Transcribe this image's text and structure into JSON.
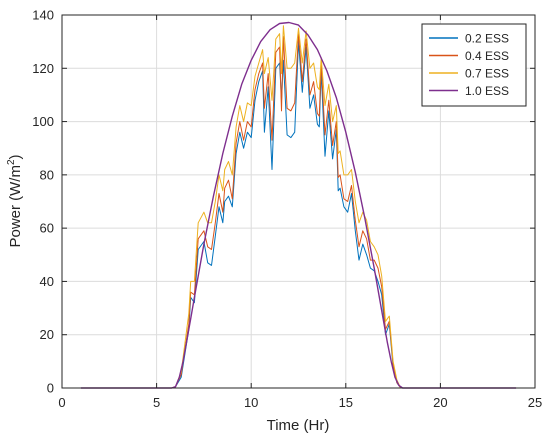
{
  "chart_data": {
    "type": "line",
    "title": "",
    "xlabel": "Time (Hr)",
    "ylabel_main": "Power (W/m",
    "ylabel_sup": "2",
    "ylabel_close": ")",
    "xlim": [
      0,
      25
    ],
    "ylim": [
      0,
      140
    ],
    "xticks": [
      0,
      5,
      10,
      15,
      20,
      25
    ],
    "yticks": [
      0,
      20,
      40,
      60,
      80,
      100,
      120,
      140
    ],
    "grid": true,
    "legend_position": "top-right",
    "series": [
      {
        "name": "0.2 ESS",
        "color": "#0072bd",
        "x": [
          1,
          5.5,
          5.8,
          6,
          6.3,
          6.7,
          6.8,
          7,
          7.2,
          7.5,
          7.7,
          7.9,
          8.1,
          8.3,
          8.5,
          8.6,
          8.8,
          9,
          9.2,
          9.4,
          9.6,
          9.8,
          10,
          10.2,
          10.4,
          10.6,
          10.7,
          10.9,
          11.1,
          11.3,
          11.5,
          11.6,
          11.7,
          11.9,
          12.1,
          12.3,
          12.5,
          12.7,
          12.9,
          13.1,
          13.3,
          13.5,
          13.6,
          13.7,
          13.9,
          14.1,
          14.3,
          14.5,
          14.6,
          14.7,
          14.9,
          15.1,
          15.3,
          15.5,
          15.7,
          15.9,
          16.1,
          16.3,
          16.5,
          16.7,
          16.9,
          17.1,
          17.3,
          17.5,
          17.7,
          17.9,
          18.1,
          18.3,
          24
        ],
        "y": [
          0,
          0,
          0,
          0.5,
          4,
          22,
          34,
          32,
          52,
          55,
          47,
          46,
          57,
          68,
          62,
          70,
          72,
          68,
          88,
          96,
          90,
          96,
          94,
          108,
          115,
          119,
          96,
          113,
          82,
          120,
          122,
          108,
          123,
          95,
          94,
          96,
          130,
          111,
          128,
          105,
          110,
          99,
          98,
          119,
          87,
          104,
          86,
          97,
          74,
          75,
          68,
          66,
          73,
          59,
          48,
          54,
          50,
          45,
          44,
          40,
          35,
          20,
          24,
          8,
          2,
          0,
          0,
          0,
          0
        ]
      },
      {
        "name": "0.4 ESS",
        "color": "#d95319",
        "x": [
          1,
          5.5,
          5.8,
          6,
          6.3,
          6.7,
          6.8,
          7,
          7.2,
          7.5,
          7.7,
          7.9,
          8.1,
          8.3,
          8.5,
          8.6,
          8.8,
          9,
          9.2,
          9.4,
          9.6,
          9.8,
          10,
          10.2,
          10.4,
          10.6,
          10.7,
          10.9,
          11.1,
          11.3,
          11.5,
          11.6,
          11.7,
          11.9,
          12.1,
          12.3,
          12.5,
          12.7,
          12.9,
          13.1,
          13.3,
          13.5,
          13.6,
          13.7,
          13.9,
          14.1,
          14.3,
          14.5,
          14.6,
          14.7,
          14.9,
          15.1,
          15.3,
          15.5,
          15.7,
          15.9,
          16.1,
          16.3,
          16.5,
          16.7,
          16.9,
          17.1,
          17.3,
          17.5,
          17.7,
          17.9,
          18.1,
          18.3,
          24
        ],
        "y": [
          0,
          0,
          0,
          0.5,
          5,
          24,
          36,
          35,
          56,
          59,
          53,
          52,
          62,
          73,
          66,
          75,
          78,
          71,
          92,
          100,
          93,
          100,
          98,
          112,
          118,
          122,
          105,
          118,
          93,
          126,
          128,
          104,
          132,
          105,
          104,
          107,
          133,
          115,
          131,
          110,
          115,
          103,
          102,
          122,
          95,
          108,
          91,
          100,
          79,
          80,
          71,
          70,
          76,
          63,
          53,
          59,
          56,
          48,
          48,
          45,
          38,
          22,
          25,
          9,
          2,
          0,
          0,
          0,
          0
        ]
      },
      {
        "name": "0.7 ESS",
        "color": "#edb120",
        "x": [
          1,
          5.5,
          5.8,
          6,
          6.3,
          6.7,
          6.8,
          7,
          7.2,
          7.5,
          7.7,
          7.9,
          8.1,
          8.3,
          8.5,
          8.6,
          8.8,
          9,
          9.2,
          9.4,
          9.6,
          9.8,
          10,
          10.2,
          10.4,
          10.6,
          10.7,
          10.9,
          11.1,
          11.3,
          11.5,
          11.6,
          11.7,
          11.9,
          12.1,
          12.3,
          12.5,
          12.7,
          12.9,
          13.1,
          13.3,
          13.5,
          13.6,
          13.7,
          13.9,
          14.1,
          14.3,
          14.5,
          14.6,
          14.7,
          14.9,
          15.1,
          15.3,
          15.5,
          15.7,
          15.9,
          16.1,
          16.3,
          16.5,
          16.7,
          16.9,
          17.1,
          17.3,
          17.5,
          17.7,
          17.9,
          18.1,
          18.3,
          24
        ],
        "y": [
          0,
          0,
          0,
          0.5,
          6,
          28,
          40,
          40,
          62,
          66,
          62,
          62,
          70,
          80,
          74,
          82,
          85,
          80,
          98,
          106,
          100,
          107,
          106,
          117,
          122,
          127,
          118,
          124,
          108,
          131,
          133,
          118,
          136,
          120,
          120,
          122,
          135,
          122,
          134,
          120,
          122,
          113,
          112,
          124,
          106,
          114,
          100,
          106,
          88,
          89,
          80,
          80,
          82,
          70,
          62,
          66,
          63,
          55,
          53,
          50,
          42,
          25,
          27,
          10,
          3,
          0,
          0,
          0,
          0
        ]
      },
      {
        "name": "1.0 ESS",
        "color": "#7e2f8e",
        "x": [
          1,
          5.5,
          5.8,
          6,
          6.2,
          6.4,
          6.6,
          6.8,
          7,
          7.5,
          8,
          8.5,
          9,
          9.5,
          10,
          10.5,
          11,
          11.5,
          12,
          12.5,
          13,
          13.5,
          14,
          14.5,
          15,
          15.5,
          16,
          16.5,
          17,
          17.2,
          17.4,
          17.6,
          17.8,
          18,
          18.3,
          24
        ],
        "y": [
          0,
          0,
          0,
          0.5,
          4,
          10,
          18,
          26,
          34,
          54,
          72,
          88,
          102,
          114,
          123,
          130,
          134.5,
          136.8,
          137.2,
          136.2,
          132.5,
          127,
          119,
          109,
          96,
          81,
          64,
          45,
          25,
          17,
          10,
          4,
          1,
          0,
          0,
          0
        ]
      }
    ]
  }
}
